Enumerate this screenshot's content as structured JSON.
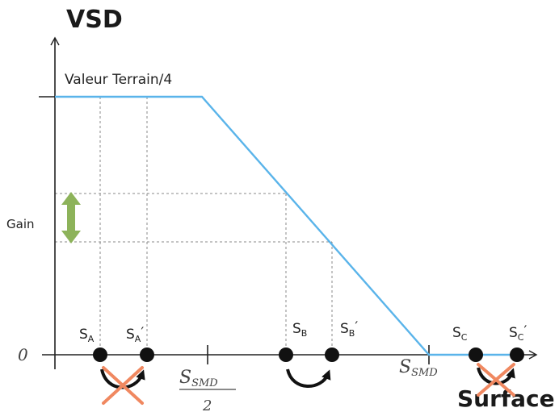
{
  "diagram": {
    "y_axis_title": "VSD",
    "x_axis_title": "Surface",
    "plateau_label": "Valeur Terrain/4",
    "gain_label": "Gain",
    "origin_label": "0",
    "half_smd_numerator": "S",
    "half_smd_sub": "SMD",
    "half_smd_denominator": "2",
    "smd_label": "S",
    "smd_sub": "SMD",
    "points": [
      {
        "id": "SA",
        "base": "S",
        "sub": "A",
        "prime": ""
      },
      {
        "id": "SA-prime",
        "base": "S",
        "sub": "A",
        "prime": "′"
      },
      {
        "id": "SB",
        "base": "S",
        "sub": "B",
        "prime": ""
      },
      {
        "id": "SB-prime",
        "base": "S",
        "sub": "B",
        "prime": "′"
      },
      {
        "id": "SC",
        "base": "S",
        "sub": "C",
        "prime": ""
      },
      {
        "id": "SC-prime",
        "base": "S",
        "sub": "C",
        "prime": "′"
      }
    ],
    "colors": {
      "curve": "#5ab4ea",
      "gain_arrow": "#8db35a",
      "cross": "#f08860",
      "axis": "#222222",
      "guide": "#888888"
    }
  }
}
